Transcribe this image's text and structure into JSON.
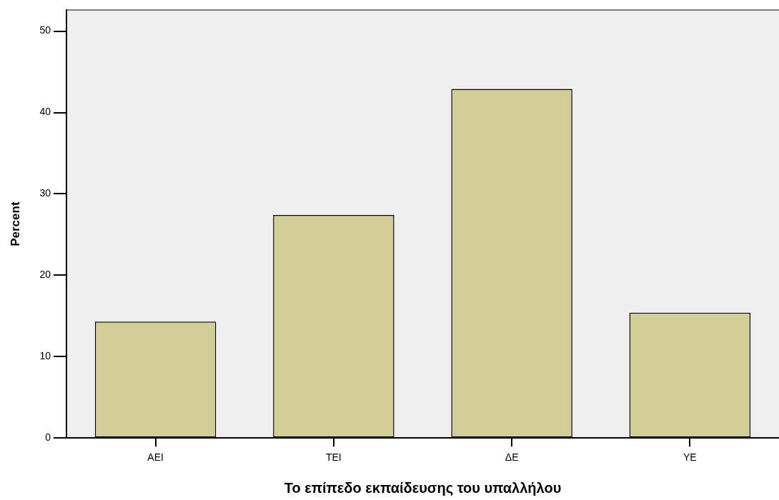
{
  "chart_data": {
    "type": "bar",
    "xlabel": "Το επίπεδο εκπαίδευσης του υπαλλήλου",
    "ylabel": "Percent",
    "categories": [
      "ΑΕΙ",
      "ΤΕΙ",
      "ΔΕ",
      "ΥΕ"
    ],
    "values": [
      14.3,
      27.4,
      42.9,
      15.4
    ],
    "color": "#d3ce98",
    "ylim": [
      0,
      52.6
    ],
    "yticks": [
      0,
      10,
      20,
      30,
      40,
      50
    ],
    "grid": false,
    "legend": false
  }
}
